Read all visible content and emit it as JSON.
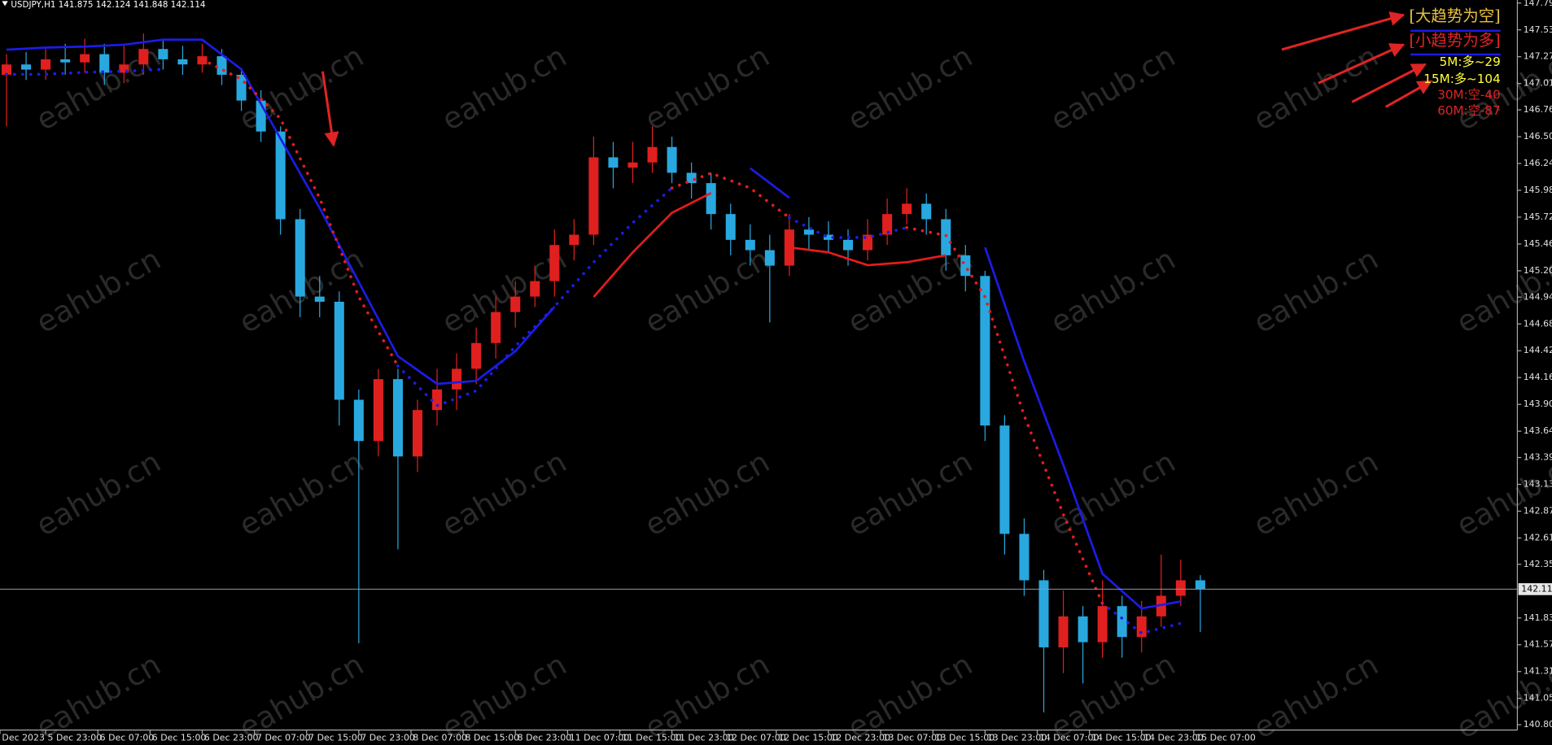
{
  "header": {
    "symbol": "USDJPY,H1",
    "ohlc": [
      141.875,
      142.124,
      141.848,
      142.114
    ]
  },
  "watermark": "eahub.cn",
  "trend_labels": [
    {
      "text": "[大趋势为空]",
      "color": "#e8c040"
    },
    {
      "text": "[小趋势为多]",
      "color": "#e02424"
    }
  ],
  "timeframe_signals": [
    {
      "text": "5M:多~29",
      "color": "#ffff3c"
    },
    {
      "text": "15M:多~104",
      "color": "#ffff3c"
    },
    {
      "text": "30M:空-40",
      "color": "#e02424"
    },
    {
      "text": "60M:空-87",
      "color": "#e02424"
    }
  ],
  "chart_data": {
    "type": "candlestick",
    "up_color": "#e0201f",
    "down_color": "#29a8e0",
    "xlim": [
      -1,
      231.6
    ],
    "ylim": [
      140.748,
      147.824
    ],
    "xticks": [
      {
        "value": -1,
        "label": "Dec 2023"
      },
      {
        "value": 6,
        "label": "5 Dec 23:00"
      },
      {
        "value": 14,
        "label": "6 Dec 07:00"
      },
      {
        "value": 22,
        "label": "6 Dec 15:00"
      },
      {
        "value": 30,
        "label": "6 Dec 23:00"
      },
      {
        "value": 38,
        "label": "7 Dec 07:00"
      },
      {
        "value": 46,
        "label": "7 Dec 15:00"
      },
      {
        "value": 54,
        "label": "7 Dec 23:00"
      },
      {
        "value": 62,
        "label": "8 Dec 07:00"
      },
      {
        "value": 70,
        "label": "8 Dec 15:00"
      },
      {
        "value": 78,
        "label": "8 Dec 23:00"
      },
      {
        "value": 86,
        "label": "11 Dec 07:00"
      },
      {
        "value": 94,
        "label": "11 Dec 15:00"
      },
      {
        "value": 102,
        "label": "11 Dec 23:00"
      },
      {
        "value": 110,
        "label": "12 Dec 07:00"
      },
      {
        "value": 118,
        "label": "12 Dec 15:00"
      },
      {
        "value": 126,
        "label": "12 Dec 23:00"
      },
      {
        "value": 134,
        "label": "13 Dec 07:00"
      },
      {
        "value": 142,
        "label": "13 Dec 15:00"
      },
      {
        "value": 150,
        "label": "13 Dec 23:00"
      },
      {
        "value": 158,
        "label": "14 Dec 07:00"
      },
      {
        "value": 166,
        "label": "14 Dec 15:00"
      },
      {
        "value": 174,
        "label": "14 Dec 23:00"
      },
      {
        "value": 182,
        "label": "15 Dec 07:00"
      }
    ],
    "yticks": [
      147.795,
      147.535,
      147.275,
      147.015,
      {
        "value": 146.76,
        "label": "146.760"
      },
      {
        "value": 146.5,
        "label": "146.500"
      },
      {
        "value": 146.24,
        "label": "146.240"
      },
      {
        "value": 145.98,
        "label": "145.980"
      },
      {
        "value": 145.72,
        "label": "145.720"
      },
      {
        "value": 145.46,
        "label": "145.460"
      },
      {
        "value": 145.2,
        "label": "145.200"
      },
      144.945,
      144.685,
      144.425,
      144.165,
      143.905,
      143.645,
      {
        "value": 143.39,
        "label": "143.390"
      },
      {
        "value": 143.13,
        "label": "143.130"
      },
      {
        "value": 142.87,
        "label": "142.870"
      },
      {
        "value": 142.61,
        "label": "142.610"
      },
      142.355,
      141.835,
      141.575,
      141.315,
      141.055,
      {
        "value": 140.8,
        "label": "140.800"
      }
    ],
    "current_price": 142.114,
    "candles": {
      "x": [
        0,
        3,
        6,
        9,
        12,
        15,
        18,
        21,
        24,
        27,
        30,
        33,
        36,
        39,
        42,
        45,
        48,
        51,
        54,
        57,
        60,
        63,
        66,
        69,
        72,
        75,
        78,
        81,
        84,
        87,
        90,
        93,
        96,
        99,
        102,
        105,
        108,
        111,
        114,
        117,
        120,
        123,
        126,
        129,
        132,
        135,
        138,
        141,
        144,
        147,
        150,
        153,
        156,
        159,
        162,
        165,
        168,
        171,
        174,
        177,
        180,
        183
      ],
      "open": [
        147.1,
        147.2,
        147.15,
        147.25,
        147.22,
        147.3,
        147.12,
        147.2,
        147.35,
        147.25,
        147.2,
        147.28,
        147.1,
        146.85,
        146.55,
        145.7,
        144.95,
        144.9,
        143.95,
        143.55,
        144.15,
        143.4,
        143.85,
        144.05,
        144.25,
        144.5,
        144.8,
        144.95,
        145.1,
        145.45,
        145.55,
        146.3,
        146.2,
        146.25,
        146.4,
        146.15,
        146.05,
        145.75,
        145.5,
        145.4,
        145.25,
        145.6,
        145.55,
        145.5,
        145.4,
        145.55,
        145.75,
        145.85,
        145.7,
        145.35,
        145.15,
        143.7,
        142.65,
        142.2,
        141.55,
        141.85,
        141.6,
        141.95,
        141.65,
        141.85,
        142.05,
        142.2
      ],
      "high": [
        147.3,
        147.32,
        147.35,
        147.4,
        147.45,
        147.4,
        147.38,
        147.5,
        147.45,
        147.38,
        147.4,
        147.35,
        147.15,
        146.95,
        146.6,
        145.8,
        145.15,
        145.0,
        144.05,
        144.25,
        144.25,
        143.95,
        144.25,
        144.4,
        144.65,
        144.95,
        145.1,
        145.25,
        145.6,
        145.7,
        146.5,
        146.45,
        146.45,
        146.6,
        146.5,
        146.25,
        146.15,
        145.85,
        145.65,
        145.55,
        145.75,
        145.72,
        145.68,
        145.6,
        145.7,
        145.9,
        146.0,
        145.95,
        145.8,
        145.45,
        145.2,
        143.8,
        142.8,
        142.3,
        142.1,
        141.95,
        142.2,
        142.05,
        142.0,
        142.45,
        142.4,
        142.25
      ],
      "low": [
        146.6,
        147.05,
        147.05,
        147.1,
        147.12,
        147.0,
        147.02,
        147.1,
        147.15,
        147.1,
        147.12,
        147.0,
        146.75,
        146.45,
        145.55,
        144.75,
        144.75,
        143.7,
        141.59,
        143.4,
        142.5,
        143.25,
        143.7,
        143.85,
        144.1,
        144.35,
        144.65,
        144.85,
        144.95,
        145.3,
        145.45,
        146.0,
        146.05,
        146.15,
        146.05,
        145.9,
        145.6,
        145.35,
        145.25,
        144.7,
        145.15,
        145.4,
        145.38,
        145.25,
        145.3,
        145.45,
        145.65,
        145.55,
        145.2,
        145.0,
        143.55,
        142.45,
        142.05,
        140.92,
        141.3,
        141.2,
        141.45,
        141.45,
        141.5,
        141.75,
        141.95,
        141.7
      ],
      "close": [
        147.2,
        147.15,
        147.25,
        147.22,
        147.3,
        147.12,
        147.2,
        147.35,
        147.25,
        147.2,
        147.28,
        147.1,
        146.85,
        146.55,
        145.7,
        144.95,
        144.9,
        143.95,
        143.55,
        144.15,
        143.4,
        143.85,
        144.05,
        144.25,
        144.5,
        144.8,
        144.95,
        145.1,
        145.45,
        145.55,
        146.3,
        146.2,
        146.25,
        146.4,
        146.15,
        146.05,
        145.75,
        145.5,
        145.4,
        145.25,
        145.6,
        145.55,
        145.5,
        145.4,
        145.55,
        145.75,
        145.85,
        145.7,
        145.35,
        145.15,
        143.7,
        142.65,
        142.2,
        141.55,
        141.85,
        141.6,
        141.95,
        141.65,
        141.85,
        142.05,
        142.2,
        142.114
      ]
    },
    "lines": {
      "x": [
        0,
        6,
        12,
        18,
        24,
        30,
        36,
        42,
        48,
        54,
        60,
        66,
        72,
        78,
        84,
        90,
        96,
        102,
        108,
        114,
        120,
        126,
        132,
        138,
        144,
        150,
        156,
        162,
        168,
        174,
        180
      ],
      "series": [
        {
          "color": "#1c1ce6",
          "style": "solid",
          "values": [
            147.344,
            147.364,
            147.373,
            147.392,
            147.44,
            147.44,
            147.153,
            146.482,
            145.81,
            145.091,
            144.372,
            144.104,
            144.133,
            144.42,
            144.852,
            null,
            null,
            null,
            null,
            146.194,
            145.907,
            null,
            null,
            null,
            null,
            145.427,
            144.324,
            143.318,
            142.263,
            141.927,
            141.994
          ]
        },
        {
          "color": "#e61c1c",
          "style": "solid",
          "values": [
            null,
            null,
            null,
            null,
            null,
            null,
            null,
            null,
            null,
            null,
            null,
            null,
            null,
            null,
            null,
            144.947,
            145.379,
            145.762,
            145.954,
            null,
            145.427,
            145.379,
            145.254,
            145.283,
            145.35,
            null,
            null,
            null,
            null,
            null,
            null
          ]
        },
        {
          "color": "#1c1ce6",
          "style": "dotted",
          "values": [
            147.105,
            147.105,
            147.124,
            147.134,
            147.153,
            null,
            null,
            null,
            null,
            null,
            144.276,
            143.893,
            144.037,
            144.468,
            144.852,
            145.283,
            145.666,
            146.002,
            null,
            null,
            145.714,
            145.523,
            145.523,
            145.619,
            null,
            null,
            null,
            null,
            141.975,
            141.688,
            141.783
          ]
        },
        {
          "color": "#e61c1c",
          "style": "dotted",
          "values": [
            null,
            null,
            null,
            null,
            null,
            147.248,
            147.057,
            146.673,
            145.906,
            144.947,
            144.276,
            null,
            null,
            null,
            null,
            null,
            null,
            146.002,
            146.146,
            146.002,
            145.714,
            null,
            null,
            145.619,
            145.542,
            144.947,
            143.797,
            142.838,
            141.975,
            null,
            null
          ]
        }
      ]
    }
  }
}
